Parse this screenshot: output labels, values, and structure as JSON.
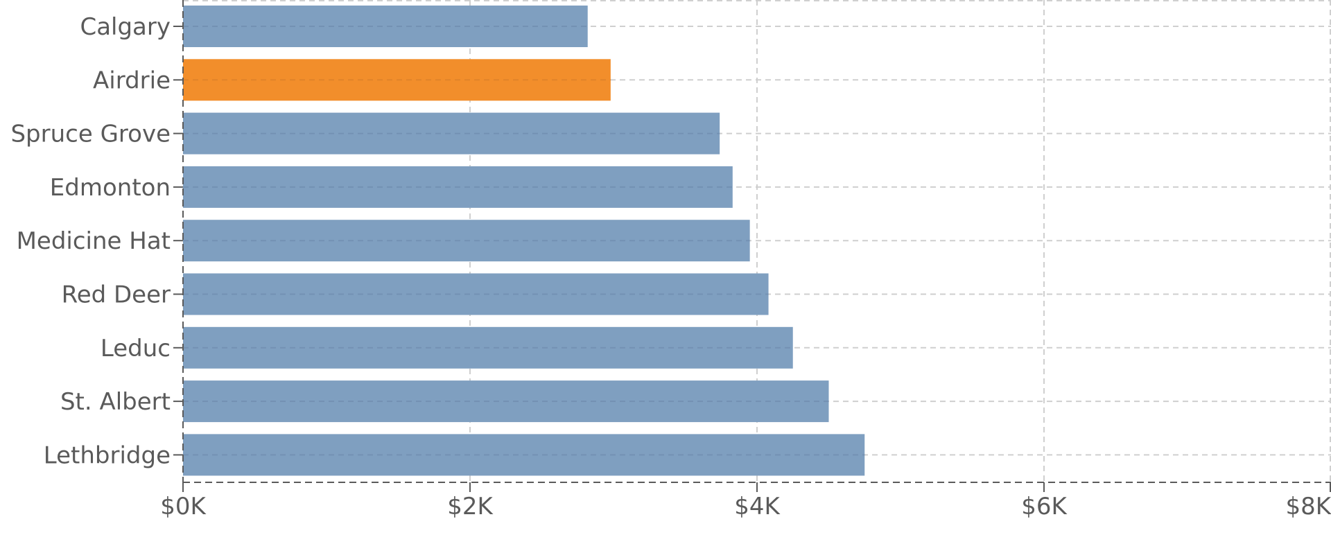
{
  "chart_data": {
    "type": "bar",
    "orientation": "horizontal",
    "title": "",
    "xlabel": "",
    "ylabel": "",
    "categories": [
      "Calgary",
      "Airdrie",
      "Spruce Grove",
      "Edmonton",
      "Medicine Hat",
      "Red Deer",
      "Leduc",
      "St. Albert",
      "Lethbridge"
    ],
    "values": [
      2820,
      2980,
      3740,
      3830,
      3950,
      4080,
      4250,
      4500,
      4750
    ],
    "highlight": "Airdrie",
    "colors": {
      "default": "#7f9fc0",
      "highlight": "#f28e2b"
    },
    "xlim": [
      0,
      8000
    ],
    "x_ticks": [
      0,
      2000,
      4000,
      6000,
      8000
    ],
    "x_tick_labels": [
      "$0K",
      "$2K",
      "$4K",
      "$6K",
      "$8K"
    ],
    "grid": true,
    "grid_style": "dashed",
    "legend": null
  }
}
